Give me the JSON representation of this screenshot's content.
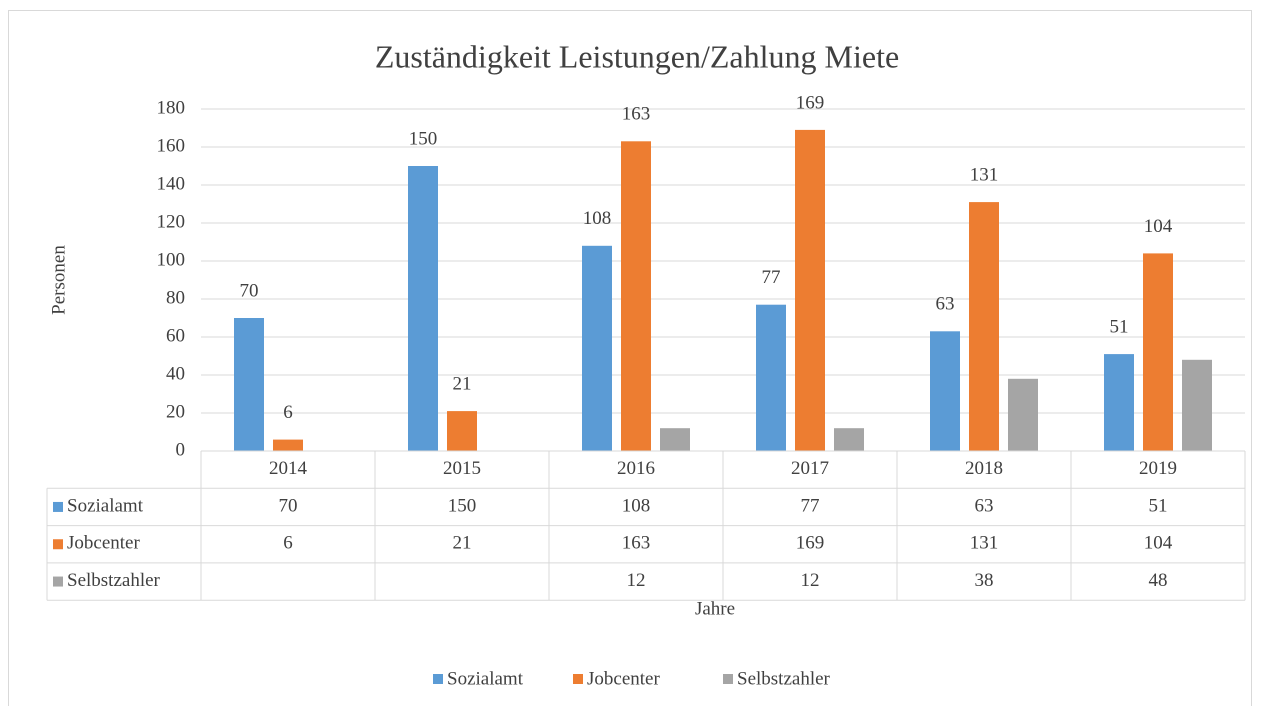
{
  "chart_data": {
    "type": "bar",
    "title": "Zuständigkeit Leistungen/Zahlung Miete",
    "x_label": "Jahre",
    "y_label": "Personen",
    "categories": [
      "2014",
      "2015",
      "2016",
      "2017",
      "2018",
      "2019"
    ],
    "series": [
      {
        "name": "Sozialamt",
        "color": "#5b9bd5",
        "values": [
          70,
          150,
          108,
          77,
          63,
          51
        ],
        "data_labels": true
      },
      {
        "name": "Jobcenter",
        "color": "#ed7d31",
        "values": [
          6,
          21,
          163,
          169,
          131,
          104
        ],
        "data_labels": true
      },
      {
        "name": "Selbstzahler",
        "color": "#a5a5a5",
        "values": [
          null,
          null,
          12,
          12,
          38,
          48
        ],
        "data_labels": false
      }
    ],
    "ylim": [
      0,
      180
    ],
    "yticks": [
      0,
      20,
      40,
      60,
      80,
      100,
      120,
      140,
      160,
      180
    ],
    "grid": true,
    "data_table": true,
    "legend": "bottom"
  }
}
